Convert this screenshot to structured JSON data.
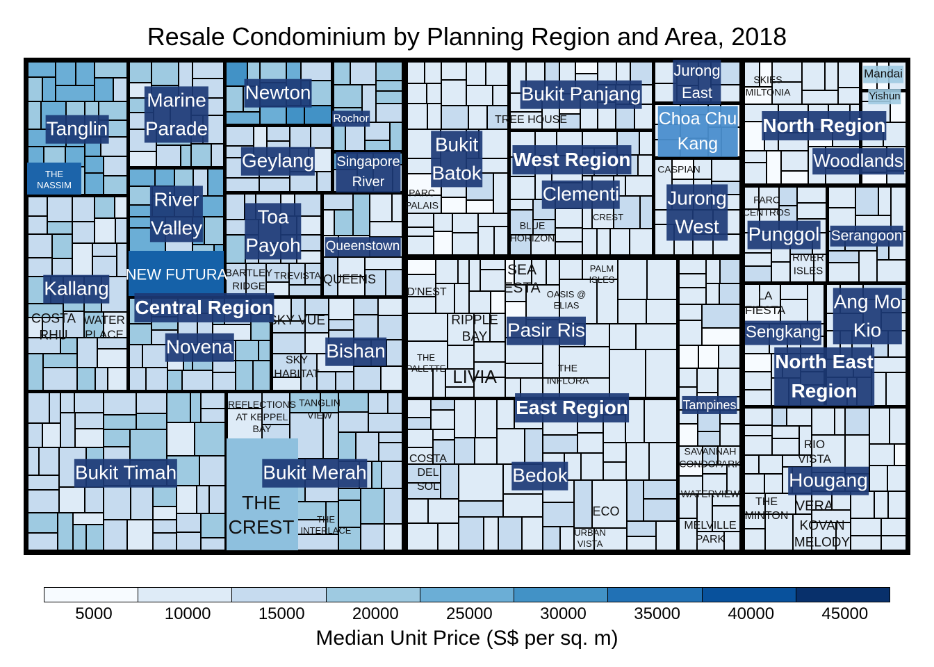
{
  "chart_data": {
    "type": "treemap",
    "title": "Resale Condominium by Planning Region and Area, 2018",
    "legend": {
      "title": "Median Unit Price (S$ per sq. m)",
      "ticks": [
        "5000",
        "10000",
        "15000",
        "20000",
        "25000",
        "30000",
        "35000",
        "40000",
        "45000"
      ],
      "colors": [
        "#f7fbff",
        "#deebf7",
        "#c6dbef",
        "#9ecae1",
        "#6baed6",
        "#4292c6",
        "#2171b5",
        "#08519c",
        "#08306b"
      ],
      "placement": "bottom"
    },
    "regions": [
      {
        "name": "Central Region",
        "areas": [
          {
            "name": "Tanglin",
            "median_price": 21000
          },
          {
            "name": "Kallang",
            "median_price": 16000
          },
          {
            "name": "Marine Parade",
            "median_price": 15000
          },
          {
            "name": "River Valley",
            "median_price": 23000
          },
          {
            "name": "Newton",
            "median_price": 24000
          },
          {
            "name": "Geylang",
            "median_price": 13000
          },
          {
            "name": "Rochor",
            "median_price": 17000
          },
          {
            "name": "Singapore River",
            "median_price": 21000
          },
          {
            "name": "Toa Payoh",
            "median_price": 14000
          },
          {
            "name": "Queenstown",
            "median_price": 14000
          },
          {
            "name": "Novena",
            "median_price": 17000
          },
          {
            "name": "Bishan",
            "median_price": 13000
          },
          {
            "name": "Bukit Timah",
            "median_price": 16000
          },
          {
            "name": "Bukit Merah",
            "median_price": 17000
          }
        ]
      },
      {
        "name": "West Region",
        "areas": [
          {
            "name": "Bukit Batok",
            "median_price": 10000
          },
          {
            "name": "Bukit Panjang",
            "median_price": 10000
          },
          {
            "name": "Clementi",
            "median_price": 11000
          },
          {
            "name": "Jurong East",
            "median_price": 11000
          },
          {
            "name": "Choa Chu Kang",
            "median_price": 9500
          },
          {
            "name": "Jurong West",
            "median_price": 10000
          }
        ]
      },
      {
        "name": "North Region",
        "areas": [
          {
            "name": "Mandai",
            "median_price": 9000
          },
          {
            "name": "Yishun",
            "median_price": 9000
          },
          {
            "name": "Woodlands",
            "median_price": 9000
          }
        ]
      },
      {
        "name": "East Region",
        "areas": [
          {
            "name": "Pasir Ris",
            "median_price": 9500
          },
          {
            "name": "Bedok",
            "median_price": 11000
          },
          {
            "name": "Tampines",
            "median_price": 10000
          }
        ]
      },
      {
        "name": "North East Region",
        "areas": [
          {
            "name": "Punggol",
            "median_price": 10000
          },
          {
            "name": "Serangoon",
            "median_price": 11000
          },
          {
            "name": "Sengkang",
            "median_price": 10000
          },
          {
            "name": "Ang Mo Kio",
            "median_price": 11000
          },
          {
            "name": "Hougang",
            "median_price": 10000
          }
        ]
      }
    ],
    "area_label_lines": {
      "Marine Parade": [
        "Marine",
        "Parade"
      ],
      "Singapore River": [
        "Singapore",
        "River"
      ],
      "River Valley": [
        "River",
        "Valley"
      ],
      "Toa Payoh": [
        "Toa",
        "Payoh"
      ],
      "Bukit Batok": [
        "Bukit",
        "Batok"
      ],
      "Jurong East": [
        "Jurong",
        "East"
      ],
      "Choa Chu Kang": [
        "Choa Chu",
        "Kang"
      ],
      "Jurong West": [
        "Jurong",
        "West"
      ],
      "Ang Mo Kio": [
        "Ang Mo",
        "Kio"
      ],
      "North East Region": [
        "North East",
        "Region"
      ]
    },
    "projects": [
      "THE NASSIM",
      "WATER PLACE",
      "COSTA RHU",
      "NEW FUTURA",
      "BARTLEY RIDGE",
      "TREVISTA",
      "QUEENS",
      "SKY VUE",
      "SKY HABITAT",
      "REFLECTIONS AT KEPPEL BAY",
      "TANGLIN VIEW",
      "THE CREST",
      "THE INTERLACE",
      "TREE HOUSE",
      "PARC PALAIS",
      "BLUE HORIZON",
      "CREST",
      "CASPIAN",
      "SKIES MILTONIA",
      "PARC CENTROS",
      "RIVER ISLES",
      "D'NEST",
      "RIPPLE BAY",
      "SEA ESTA",
      "PALM ISLES",
      "OASIS @ ELIAS",
      "THE PALETTE",
      "LIVIA",
      "THE INFLORA",
      "COSTA DEL SOL",
      "ECO",
      "URBAN VISTA",
      "SAVANNAH CONDOPARK",
      "WATERVIEW",
      "MELVILLE PARK",
      "LA FIESTA",
      "RIO VISTA",
      "THE MINTON",
      "VERA",
      "KOVAN MELODY"
    ]
  }
}
